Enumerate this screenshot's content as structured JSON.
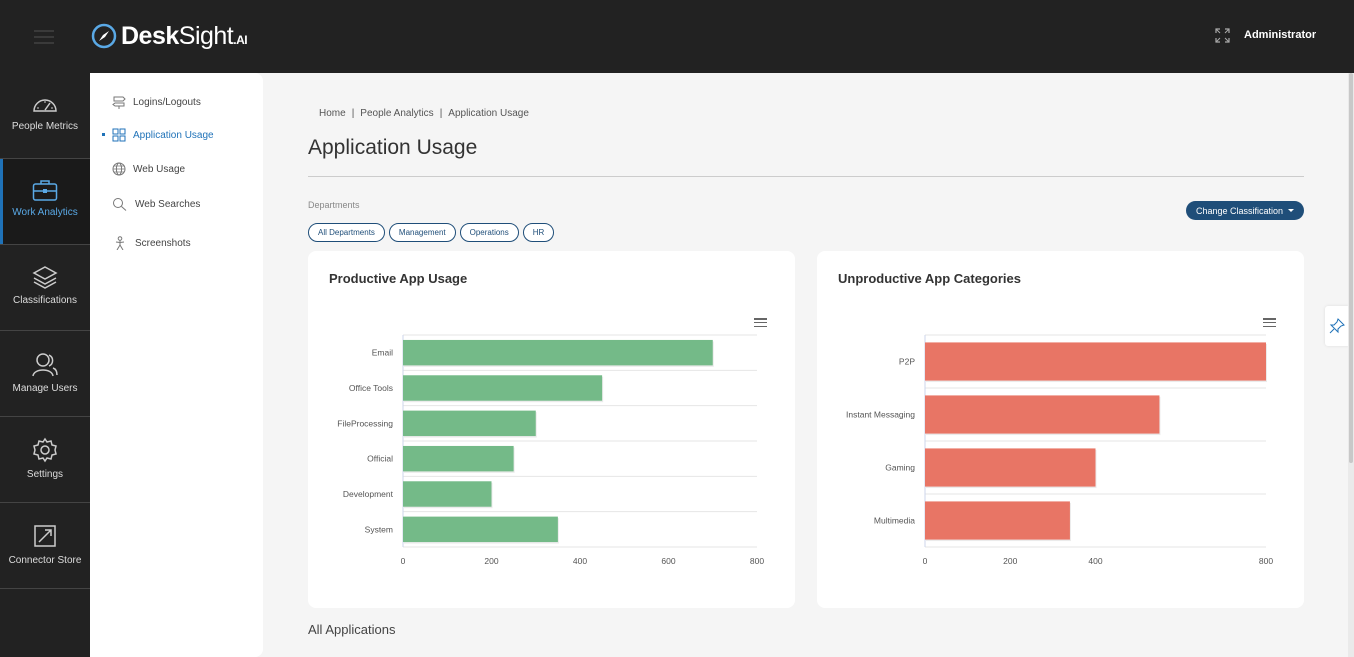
{
  "brand": {
    "name_bold": "Desk",
    "name_light": "Sight",
    "suffix": ".AI"
  },
  "header": {
    "user": "Administrator"
  },
  "leftnav": [
    {
      "label": "People Metrics",
      "icon": "speedometer-icon"
    },
    {
      "label": "Work Analytics",
      "icon": "briefcase-icon",
      "active": true
    },
    {
      "label": "Classifications",
      "icon": "layers-icon"
    },
    {
      "label": "Manage Users",
      "icon": "users-icon"
    },
    {
      "label": "Settings",
      "icon": "gear-icon"
    },
    {
      "label": "Connector Store",
      "icon": "connector-icon"
    }
  ],
  "submenu": [
    {
      "label": "Logins/Logouts",
      "icon": "signpost-icon"
    },
    {
      "label": "Application Usage",
      "icon": "grid-icon",
      "active": true
    },
    {
      "label": "Web Usage",
      "icon": "globe-icon"
    },
    {
      "label": "Web Searches",
      "icon": "search-icon"
    },
    {
      "label": "Screenshots",
      "icon": "person-icon"
    }
  ],
  "breadcrumb": [
    "Home",
    "People Analytics",
    "Application Usage"
  ],
  "page_title": "Application Usage",
  "departments": {
    "label": "Departments",
    "chips": [
      "All Departments",
      "Management",
      "Operations",
      "HR"
    ]
  },
  "change_classification": "Change Classification",
  "all_applications": "All Applications",
  "colors": {
    "productive": "#74ba88",
    "unproductive": "#e87565",
    "accent": "#1f4e79"
  },
  "chart_data": [
    {
      "type": "bar",
      "orientation": "horizontal",
      "title": "Productive App Usage",
      "categories": [
        "Email",
        "Office Tools",
        "FileProcessing",
        "Official",
        "Development",
        "System"
      ],
      "values": [
        700,
        450,
        300,
        250,
        200,
        350
      ],
      "xlim": [
        0,
        800
      ],
      "xticks": [
        0,
        200,
        400,
        600,
        800
      ],
      "grid": true
    },
    {
      "type": "bar",
      "orientation": "horizontal",
      "title": "Unproductive App Categories",
      "categories": [
        "P2P",
        "Instant Messaging",
        "Gaming",
        "Multimedia"
      ],
      "values": [
        800,
        550,
        400,
        340
      ],
      "xlim": [
        0,
        800
      ],
      "xticks": [
        0,
        200,
        400,
        800
      ],
      "grid": true
    }
  ]
}
